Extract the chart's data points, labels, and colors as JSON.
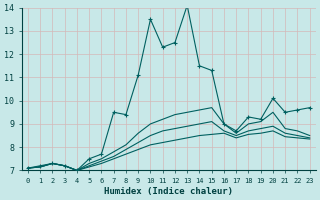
{
  "xlabel": "Humidex (Indice chaleur)",
  "background_color": "#c8e8e8",
  "grid_color": "#b0d0d0",
  "line_color": "#006060",
  "xlim": [
    -0.5,
    23.5
  ],
  "ylim": [
    7,
    14
  ],
  "xtick_labels": [
    "0",
    "1",
    "2",
    "3",
    "4",
    "5",
    "6",
    "7",
    "8",
    "9",
    "10",
    "11",
    "12",
    "13",
    "14",
    "15",
    "16",
    "17",
    "18",
    "19",
    "20",
    "21",
    "22",
    "23"
  ],
  "yticks": [
    7,
    8,
    9,
    10,
    11,
    12,
    13,
    14
  ],
  "series": [
    [
      7.1,
      7.2,
      7.3,
      7.2,
      7.0,
      7.5,
      7.7,
      9.5,
      9.4,
      11.1,
      13.5,
      12.3,
      12.5,
      14.1,
      11.5,
      11.3,
      9.0,
      8.7,
      9.3,
      9.2,
      10.1,
      9.5,
      9.6,
      9.7
    ],
    [
      7.1,
      7.15,
      7.3,
      7.2,
      7.0,
      7.3,
      7.5,
      7.8,
      8.1,
      8.6,
      9.0,
      9.2,
      9.4,
      9.5,
      9.6,
      9.7,
      9.0,
      8.6,
      9.0,
      9.1,
      9.5,
      8.8,
      8.7,
      8.5
    ],
    [
      7.1,
      7.15,
      7.3,
      7.2,
      7.0,
      7.2,
      7.4,
      7.6,
      7.9,
      8.2,
      8.5,
      8.7,
      8.8,
      8.9,
      9.0,
      9.1,
      8.7,
      8.5,
      8.7,
      8.8,
      8.9,
      8.6,
      8.5,
      8.4
    ],
    [
      7.1,
      7.15,
      7.3,
      7.2,
      7.0,
      7.15,
      7.3,
      7.5,
      7.7,
      7.9,
      8.1,
      8.2,
      8.3,
      8.4,
      8.5,
      8.55,
      8.6,
      8.4,
      8.55,
      8.6,
      8.7,
      8.45,
      8.4,
      8.35
    ]
  ]
}
